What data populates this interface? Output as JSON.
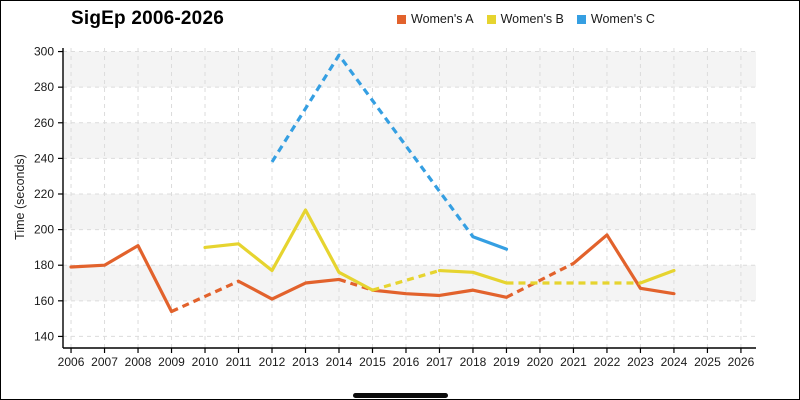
{
  "title": "SigEp 2006-2026",
  "y_axis_label": "Time (seconds)",
  "footer": {
    "handle_color": "#0b0b0b"
  },
  "chart_data": {
    "type": "line",
    "title": "SigEp 2006-2026",
    "xlabel": "",
    "ylabel": "Time (seconds)",
    "xlim": [
      2005.76,
      2026.45
    ],
    "ylim": [
      133.5,
      302
    ],
    "x_ticks": [
      2006,
      2007,
      2008,
      2009,
      2010,
      2011,
      2012,
      2013,
      2014,
      2015,
      2016,
      2017,
      2018,
      2019,
      2020,
      2021,
      2022,
      2023,
      2024,
      2025,
      2026
    ],
    "y_ticks": [
      140,
      160,
      180,
      200,
      220,
      240,
      260,
      280,
      300
    ],
    "grid": {
      "on": true,
      "style": "dashed",
      "color": "#dcdcdc"
    },
    "bands": {
      "ranges": [
        [
          160,
          180
        ],
        [
          200,
          220
        ],
        [
          240,
          260
        ],
        [
          280,
          300
        ]
      ],
      "color": "#f4f4f4"
    },
    "axis_color": "#000000",
    "tick_label_color": "#1a1a1a",
    "legend_position": "top",
    "series": [
      {
        "name": "Women's A",
        "color": "#e2622c",
        "points": [
          {
            "year": 2006,
            "value": 179,
            "dashed_to_next": false
          },
          {
            "year": 2007,
            "value": 180,
            "dashed_to_next": false
          },
          {
            "year": 2008,
            "value": 191,
            "dashed_to_next": false
          },
          {
            "year": 2009,
            "value": 154,
            "dashed_to_next": true
          },
          {
            "year": 2011,
            "value": 171,
            "dashed_to_next": false
          },
          {
            "year": 2012,
            "value": 161,
            "dashed_to_next": false
          },
          {
            "year": 2013,
            "value": 170,
            "dashed_to_next": false
          },
          {
            "year": 2014,
            "value": 172,
            "dashed_to_next": true
          },
          {
            "year": 2015,
            "value": 166,
            "dashed_to_next": false
          },
          {
            "year": 2016,
            "value": 164,
            "dashed_to_next": false
          },
          {
            "year": 2017,
            "value": 163,
            "dashed_to_next": false
          },
          {
            "year": 2018,
            "value": 166,
            "dashed_to_next": false
          },
          {
            "year": 2019,
            "value": 162,
            "dashed_to_next": true
          },
          {
            "year": 2021,
            "value": 181,
            "dashed_to_next": false
          },
          {
            "year": 2022,
            "value": 197,
            "dashed_to_next": false
          },
          {
            "year": 2023,
            "value": 167,
            "dashed_to_next": false
          },
          {
            "year": 2024,
            "value": 164,
            "dashed_to_next": false
          }
        ]
      },
      {
        "name": "Women's B",
        "color": "#e6d42f",
        "points": [
          {
            "year": 2010,
            "value": 190,
            "dashed_to_next": false
          },
          {
            "year": 2011,
            "value": 192,
            "dashed_to_next": false
          },
          {
            "year": 2012,
            "value": 177,
            "dashed_to_next": false
          },
          {
            "year": 2013,
            "value": 211,
            "dashed_to_next": false
          },
          {
            "year": 2014,
            "value": 176,
            "dashed_to_next": false
          },
          {
            "year": 2015,
            "value": 166,
            "dashed_to_next": true
          },
          {
            "year": 2017,
            "value": 177,
            "dashed_to_next": false
          },
          {
            "year": 2018,
            "value": 176,
            "dashed_to_next": false
          },
          {
            "year": 2019,
            "value": 170,
            "dashed_to_next": true
          },
          {
            "year": 2023,
            "value": 170,
            "dashed_to_next": false
          },
          {
            "year": 2024,
            "value": 177,
            "dashed_to_next": false
          }
        ]
      },
      {
        "name": "Women's C",
        "color": "#359fe2",
        "points": [
          {
            "year": 2012,
            "value": 238,
            "dashed_to_next": true
          },
          {
            "year": 2014,
            "value": 298,
            "dashed_to_next": true
          },
          {
            "year": 2018,
            "value": 196,
            "dashed_to_next": false
          },
          {
            "year": 2019,
            "value": 189,
            "dashed_to_next": false
          }
        ]
      }
    ]
  }
}
